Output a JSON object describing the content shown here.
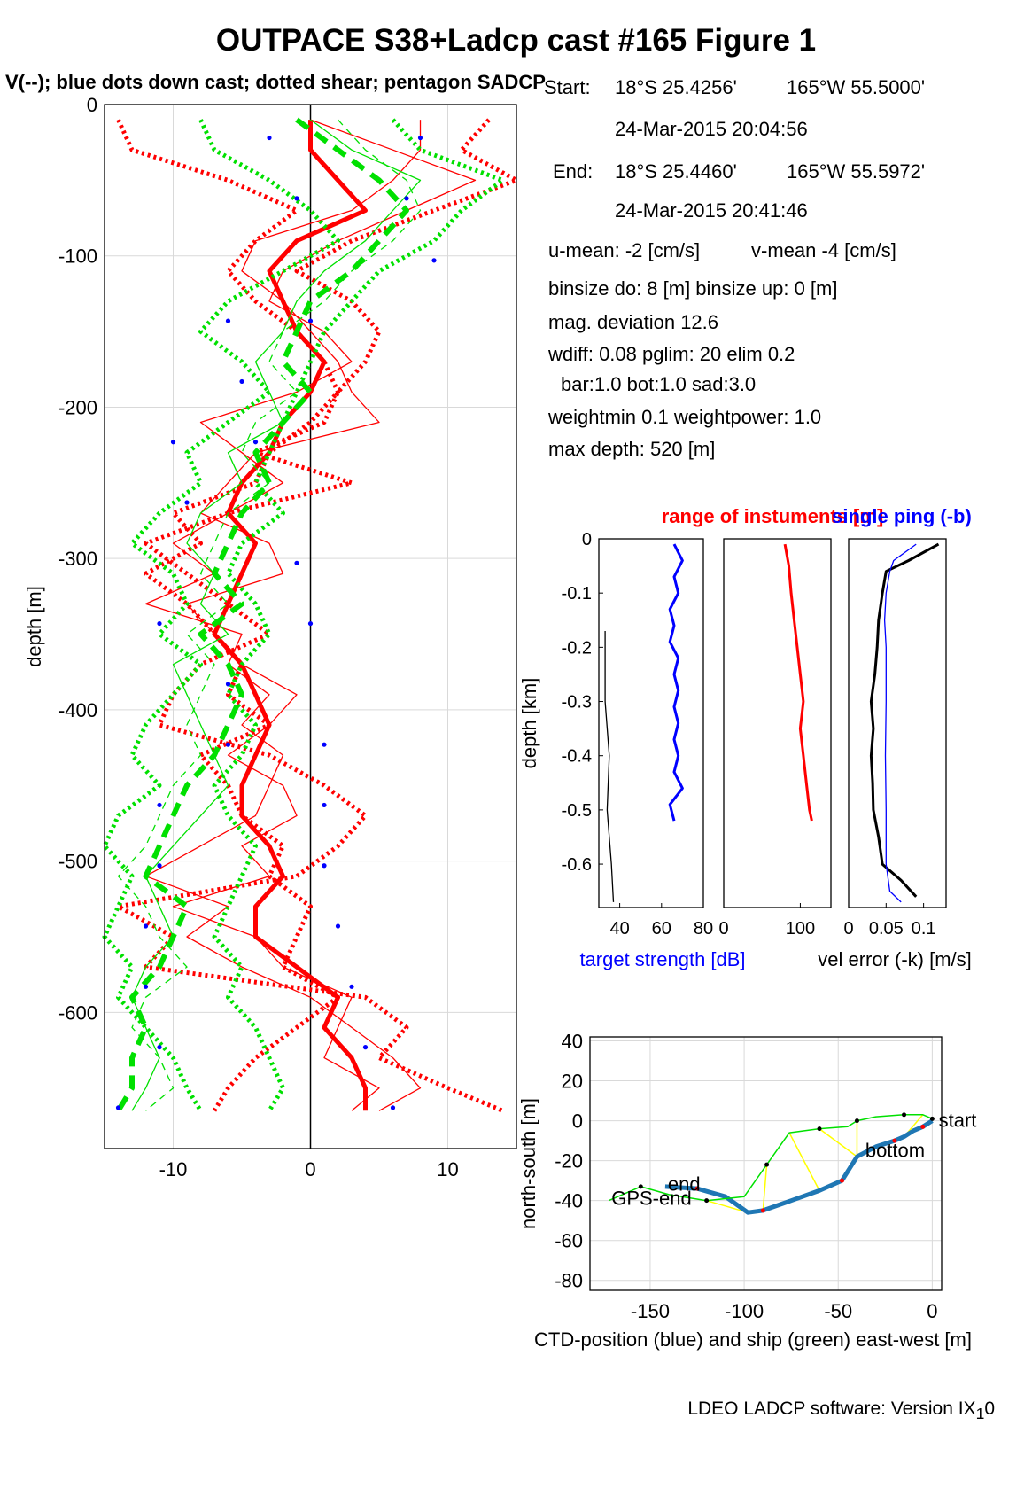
{
  "figure": {
    "title": "OUTPACE S38+Ladcp cast #165  Figure 1",
    "subtitle": "V(--); blue dots down cast; dotted shear; pentagon SADCP",
    "footer": "LDEO LADCP software: Version IX_10"
  },
  "cast_info": {
    "start_label": "Start:",
    "start_lat": "18°S 25.4256'",
    "start_lon": "165°W 55.5000'",
    "start_time": "24-Mar-2015 20:04:56",
    "end_label": "End:",
    "end_lat": "18°S 25.4460'",
    "end_lon": "165°W 55.5972'",
    "end_time": "24-Mar-2015 20:41:46",
    "u_mean": "u-mean:  -2 [cm/s]",
    "v_mean": "v-mean  -4 [cm/s]",
    "binsize": "binsize do: 8 [m]  binsize up:  0 [m]",
    "mag_deviation": "mag. deviation 12.6",
    "wdiff": "wdiff: 0.08  pglim: 20  elim 0.2",
    "weights": "bar:1.0 bot:1.0 sad:3.0",
    "weightmin": "weightmin 0.1  weightpower: 1.0",
    "max_depth": "max depth: 520 [m]"
  },
  "colors": {
    "u": "#ff0000",
    "v": "#00e000",
    "blue": "#0000ff",
    "black": "#000000",
    "ctd_track": "#1f77b4",
    "link": "#ffff00"
  },
  "chart_data": [
    {
      "type": "line",
      "name": "velocity-profiles",
      "ylabel": "depth [m]",
      "xlim": [
        -15,
        15
      ],
      "ylim": [
        -690,
        0
      ],
      "xticks": [
        -10,
        0,
        10
      ],
      "yticks": [
        0,
        -100,
        -200,
        -300,
        -400,
        -500,
        -600
      ],
      "grid": true,
      "depth": [
        -10,
        -30,
        -50,
        -70,
        -90,
        -110,
        -130,
        -150,
        -170,
        -190,
        -210,
        -230,
        -250,
        -270,
        -290,
        -310,
        -330,
        -350,
        -370,
        -390,
        -410,
        -430,
        -450,
        -470,
        -490,
        -510,
        -530,
        -550,
        -570,
        -590,
        -610,
        -630,
        -650,
        -665
      ],
      "series": [
        {
          "color": "#ff0000",
          "style": "solid-thick",
          "values": [
            0,
            0,
            2,
            4,
            -1,
            -3,
            -2,
            -1,
            1,
            0,
            -2,
            -3,
            -5,
            -6,
            -4,
            -5,
            -6,
            -7,
            -5,
            -4,
            -3,
            -4,
            -5,
            -5,
            -3,
            -2,
            -4,
            -4,
            -1,
            2,
            1,
            3,
            4,
            4
          ]
        },
        {
          "color": "#ff0000",
          "style": "solid-thin",
          "values": [
            0,
            6,
            12,
            7,
            2,
            -2,
            -3,
            1,
            3,
            -1,
            -8,
            -5,
            -2,
            -6,
            -10,
            -7,
            -12,
            -5,
            -6,
            -3,
            -5,
            -2,
            -3,
            -4,
            -8,
            -12,
            -6,
            -9,
            -5,
            0,
            3,
            6,
            8,
            5
          ]
        },
        {
          "color": "#ff0000",
          "style": "solid-thin",
          "values": [
            8,
            8,
            6,
            3,
            -4,
            -5,
            -2,
            0,
            2,
            3,
            5,
            -4,
            -6,
            -8,
            -3,
            -2,
            -9,
            -7,
            -5,
            -1,
            -3,
            -6,
            -2,
            -1,
            -5,
            -3,
            -10,
            -4,
            -2,
            3,
            2,
            1,
            5,
            3
          ]
        },
        {
          "color": "#ff0000",
          "style": "dotted",
          "values": [
            13,
            11,
            15,
            9,
            3,
            -1,
            3,
            5,
            4,
            2,
            1,
            -4,
            3,
            -6,
            -12,
            -9,
            -6,
            -3,
            -8,
            -10,
            -11,
            -3,
            1,
            4,
            2,
            -1,
            -14,
            -10,
            -12,
            4,
            7,
            5,
            10,
            14
          ]
        },
        {
          "color": "#ff0000",
          "style": "dotted",
          "values": [
            -14,
            -13,
            -6,
            -1,
            -4,
            -6,
            -4,
            -1,
            1,
            2,
            0,
            -3,
            -4,
            -10,
            -8,
            -12,
            -9,
            -7,
            -5,
            -6,
            -3,
            -8,
            -6,
            -5,
            -2,
            -3,
            0,
            -1,
            -2,
            2,
            -1,
            -4,
            -6,
            -7
          ]
        },
        {
          "color": "#00e000",
          "style": "dashed-thick",
          "values": [
            -1,
            2,
            5,
            7,
            5,
            3,
            0,
            -1,
            -2,
            0,
            -2,
            -4,
            -3,
            -5,
            -6,
            -7,
            -5,
            -8,
            -6,
            -5,
            -6,
            -7,
            -9,
            -10,
            -11,
            -12,
            -9,
            -10,
            -11,
            -13,
            -12,
            -13,
            -13,
            -14
          ]
        },
        {
          "color": "#00e000",
          "style": "dashed-thin",
          "values": [
            2,
            4,
            7,
            8,
            6,
            3,
            1,
            -2,
            -3,
            -1,
            -4,
            -5,
            -3,
            -6,
            -7,
            -8,
            -6,
            -9,
            -7,
            -8,
            -9,
            -8,
            -10,
            -11,
            -12,
            -14,
            -12,
            -11,
            -9,
            -12,
            -13,
            -11,
            -10,
            -12
          ]
        },
        {
          "color": "#00e000",
          "style": "solid-thin",
          "values": [
            0,
            3,
            8,
            6,
            4,
            1,
            -1,
            -2,
            -4,
            -3,
            -2,
            -6,
            -5,
            -8,
            -9,
            -7,
            -8,
            -6,
            -10,
            -9,
            -8,
            -7,
            -6,
            -8,
            -10,
            -12,
            -11,
            -10,
            -12,
            -13,
            -12,
            -11,
            -12,
            -13
          ]
        },
        {
          "color": "#00e000",
          "style": "dotted",
          "values": [
            -8,
            -7,
            -3,
            0,
            2,
            -2,
            -6,
            -8,
            -5,
            -3,
            -6,
            -9,
            -8,
            -11,
            -13,
            -10,
            -9,
            -11,
            -8,
            -10,
            -12,
            -13,
            -11,
            -14,
            -15,
            -13,
            -14,
            -15,
            -13,
            -14,
            -12,
            -10,
            -9,
            -8
          ]
        },
        {
          "color": "#00e000",
          "style": "dotted",
          "values": [
            6,
            8,
            14,
            11,
            9,
            5,
            3,
            1,
            0,
            -1,
            -2,
            -3,
            -4,
            -2,
            -5,
            -6,
            -4,
            -3,
            -5,
            -6,
            -4,
            -5,
            -7,
            -6,
            -4,
            -5,
            -6,
            -7,
            -5,
            -6,
            -4,
            -3,
            -2,
            -3
          ]
        }
      ],
      "blue_dots": [
        [
          -3,
          -22
        ],
        [
          8,
          -22
        ],
        [
          -1,
          -62
        ],
        [
          7,
          -62
        ],
        [
          9,
          -103
        ],
        [
          0,
          -143
        ],
        [
          -6,
          -143
        ],
        [
          -5,
          -183
        ],
        [
          -10,
          -223
        ],
        [
          -4,
          -223
        ],
        [
          -9,
          -263
        ],
        [
          -1,
          -303
        ],
        [
          0,
          -343
        ],
        [
          -11,
          -343
        ],
        [
          -6,
          -383
        ],
        [
          -6,
          -423
        ],
        [
          1,
          -423
        ],
        [
          -11,
          -463
        ],
        [
          1,
          -463
        ],
        [
          1,
          -503
        ],
        [
          -11,
          -503
        ],
        [
          2,
          -543
        ],
        [
          -12,
          -543
        ],
        [
          3,
          -583
        ],
        [
          -12,
          -583
        ],
        [
          4,
          -623
        ],
        [
          -11,
          -623
        ],
        [
          6,
          -663
        ],
        [
          -14,
          -663
        ]
      ]
    },
    {
      "type": "line",
      "name": "target-strength",
      "xlabel": "target strength [dB]",
      "ylabel": "depth [km]",
      "xlim": [
        30,
        80
      ],
      "ylim": [
        -0.68,
        0
      ],
      "xticks": [
        40,
        60,
        80
      ],
      "yticks": [
        0,
        -0.1,
        -0.2,
        -0.3,
        -0.4,
        -0.5,
        -0.6
      ],
      "series": [
        {
          "color": "#0000ff",
          "depth": [
            -0.01,
            -0.04,
            -0.07,
            -0.1,
            -0.13,
            -0.16,
            -0.19,
            -0.22,
            -0.25,
            -0.28,
            -0.31,
            -0.34,
            -0.37,
            -0.4,
            -0.43,
            -0.46,
            -0.49,
            -0.52
          ],
          "values": [
            66,
            70,
            66,
            68,
            64,
            66,
            64,
            68,
            66,
            68,
            66,
            68,
            66,
            68,
            66,
            70,
            64,
            66
          ]
        },
        {
          "color": "#000000",
          "depth": [
            -0.17,
            -0.3,
            -0.4,
            -0.5,
            -0.6,
            -0.67
          ],
          "values": [
            33,
            33,
            35,
            34,
            36,
            37
          ]
        }
      ]
    },
    {
      "type": "line",
      "name": "range-of-instruments",
      "title": "range of instuments [m]",
      "xlim": [
        0,
        140
      ],
      "ylim": [
        -0.68,
        0
      ],
      "xticks": [
        0,
        100
      ],
      "series": [
        {
          "color": "#ff0000",
          "depth": [
            -0.01,
            -0.05,
            -0.1,
            -0.15,
            -0.2,
            -0.25,
            -0.3,
            -0.35,
            -0.4,
            -0.45,
            -0.5,
            -0.52
          ],
          "values": [
            80,
            85,
            88,
            92,
            96,
            100,
            104,
            100,
            104,
            108,
            112,
            115
          ]
        }
      ]
    },
    {
      "type": "line",
      "name": "vel-error",
      "title": "single ping (-b)",
      "xlabel": "vel error (-k) [m/s]",
      "xlim": [
        0,
        0.13
      ],
      "ylim": [
        -0.68,
        0
      ],
      "xticks": [
        0,
        0.05,
        0.1
      ],
      "xticklabels": [
        "0",
        "0.05",
        "0.1"
      ],
      "series": [
        {
          "color": "#000000",
          "depth": [
            -0.01,
            -0.04,
            -0.06,
            -0.1,
            -0.15,
            -0.2,
            -0.25,
            -0.3,
            -0.35,
            -0.4,
            -0.45,
            -0.5,
            -0.55,
            -0.6,
            -0.63,
            -0.66
          ],
          "values": [
            0.12,
            0.08,
            0.05,
            0.045,
            0.04,
            0.038,
            0.035,
            0.03,
            0.033,
            0.03,
            0.032,
            0.033,
            0.04,
            0.045,
            0.07,
            0.09
          ]
        },
        {
          "color": "#0000ff",
          "depth": [
            -0.01,
            -0.04,
            -0.06,
            -0.1,
            -0.15,
            -0.2,
            -0.3,
            -0.4,
            -0.5,
            -0.6,
            -0.65,
            -0.67
          ],
          "values": [
            0.09,
            0.06,
            0.055,
            0.05,
            0.048,
            0.05,
            0.05,
            0.049,
            0.05,
            0.05,
            0.055,
            0.07
          ]
        }
      ]
    },
    {
      "type": "line",
      "name": "position",
      "xlabel": "CTD-position (blue) and ship (green) east-west [m]",
      "ylabel": "north-south [m]",
      "xlim": [
        -182,
        5
      ],
      "ylim": [
        -85,
        42
      ],
      "xticks": [
        -150,
        -100,
        -50,
        0
      ],
      "yticks": [
        40,
        20,
        0,
        -20,
        -40,
        -60,
        -80
      ],
      "series": [
        {
          "color": "#1f77b4",
          "x": [
            0,
            -5,
            -10,
            -15,
            -20,
            -30,
            -40,
            -48,
            -60,
            -75,
            -90,
            -98,
            -110,
            -125,
            -142
          ],
          "y": [
            0,
            -3,
            -5,
            -8,
            -10,
            -13,
            -18,
            -30,
            -35,
            -40,
            -45,
            -46,
            -38,
            -34,
            -33
          ]
        },
        {
          "color": "#00e000",
          "x": [
            0,
            -5,
            -15,
            -30,
            -40,
            -45,
            -60,
            -76,
            -88,
            -100,
            -120,
            -140,
            -155,
            -172
          ],
          "y": [
            1,
            3,
            3,
            2,
            0,
            -3,
            -4,
            -6,
            -22,
            -38,
            -40,
            -37,
            -33,
            -40
          ]
        }
      ],
      "annotations": [
        {
          "text": "start",
          "x": 2,
          "y": 0
        },
        {
          "text": "bottom",
          "x": -37,
          "y": -15
        },
        {
          "text": "end",
          "x": -142,
          "y": -32
        },
        {
          "text": "GPS-end",
          "x": -172,
          "y": -39
        }
      ]
    }
  ]
}
